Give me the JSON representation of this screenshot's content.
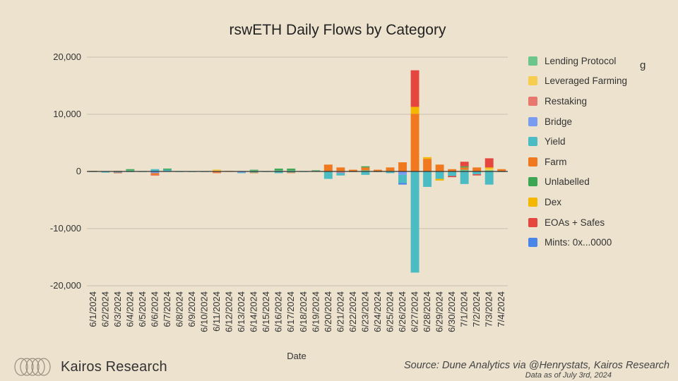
{
  "chart_data": {
    "type": "bar",
    "stacked": true,
    "title": "rswETH Daily Flows by Category",
    "xlabel": "Date",
    "ylabel": "",
    "ylim": [
      -20000,
      20000
    ],
    "yticks": [
      20000,
      10000,
      0,
      -10000,
      -20000
    ],
    "ytick_labels": [
      "20,000",
      "10,000",
      "0",
      "-10,000",
      "-20,000"
    ],
    "grid": true,
    "legend_position": "right",
    "categories": [
      "6/1/2024",
      "6/2/2024",
      "6/3/2024",
      "6/4/2024",
      "6/5/2024",
      "6/6/2024",
      "6/7/2024",
      "6/8/2024",
      "6/9/2024",
      "6/10/2024",
      "6/11/2024",
      "6/12/2024",
      "6/13/2024",
      "6/14/2024",
      "6/15/2024",
      "6/16/2024",
      "6/17/2024",
      "6/18/2024",
      "6/19/2024",
      "6/20/2024",
      "6/21/2024",
      "6/22/2024",
      "6/23/2024",
      "6/24/2024",
      "6/25/2024",
      "6/26/2024",
      "6/27/2024",
      "6/28/2024",
      "6/29/2024",
      "6/30/2024",
      "7/1/2024",
      "7/2/2024",
      "7/3/2024",
      "7/4/2024"
    ],
    "series": [
      {
        "name": "Lending Protocol",
        "color": "#6cc58a",
        "values": [
          0,
          0,
          0,
          200,
          0,
          0,
          0,
          0,
          0,
          0,
          0,
          0,
          0,
          200,
          0,
          200,
          200,
          0,
          0,
          0,
          0,
          0,
          200,
          0,
          100,
          0,
          0,
          0,
          0,
          0,
          300,
          0,
          200,
          0
        ]
      },
      {
        "name": "Leveraged Farming",
        "color": "#f7cd4f",
        "values": [
          0,
          0,
          0,
          0,
          0,
          0,
          0,
          0,
          0,
          0,
          200,
          0,
          0,
          0,
          0,
          0,
          0,
          0,
          0,
          0,
          100,
          0,
          0,
          0,
          0,
          0,
          0,
          0,
          0,
          0,
          0,
          0,
          300,
          0
        ]
      },
      {
        "name": "Restaking",
        "color": "#e8786d",
        "values": [
          0,
          0,
          0,
          0,
          0,
          0,
          0,
          0,
          0,
          0,
          -200,
          0,
          0,
          0,
          0,
          0,
          0,
          0,
          0,
          0,
          -200,
          0,
          0,
          0,
          0,
          0,
          0,
          0,
          0,
          0,
          0,
          0,
          0,
          0
        ]
      },
      {
        "name": "Bridge",
        "color": "#7a9cf0",
        "values": [
          0,
          0,
          0,
          0,
          0,
          -300,
          0,
          0,
          0,
          0,
          0,
          0,
          -200,
          0,
          0,
          0,
          0,
          0,
          0,
          0,
          -100,
          0,
          0,
          0,
          0,
          -600,
          0,
          0,
          0,
          0,
          0,
          0,
          0,
          0
        ]
      },
      {
        "name": "Yield",
        "color": "#4bbcc4",
        "values": [
          -100,
          -200,
          -200,
          -100,
          -100,
          400,
          300,
          -100,
          -100,
          -100,
          0,
          0,
          -100,
          -200,
          -100,
          -300,
          -200,
          -100,
          100,
          -1300,
          -400,
          -100,
          -600,
          -100,
          -300,
          -1400,
          -17700,
          -2700,
          -1300,
          -800,
          -2200,
          -500,
          -2300,
          -100
        ]
      },
      {
        "name": "Farm",
        "color": "#f0781e",
        "values": [
          100,
          0,
          100,
          0,
          0,
          -300,
          0,
          0,
          0,
          0,
          -100,
          100,
          0,
          -100,
          0,
          0,
          -100,
          0,
          0,
          1200,
          600,
          300,
          500,
          300,
          600,
          1600,
          10100,
          2200,
          1200,
          400,
          400,
          700,
          0,
          400
        ]
      },
      {
        "name": "Unlabelled",
        "color": "#3da654",
        "values": [
          0,
          0,
          0,
          200,
          0,
          0,
          200,
          0,
          0,
          0,
          0,
          0,
          0,
          100,
          0,
          300,
          300,
          0,
          100,
          0,
          0,
          0,
          200,
          0,
          0,
          0,
          0,
          0,
          0,
          0,
          200,
          0,
          0,
          0
        ]
      },
      {
        "name": "Dex",
        "color": "#f5b800",
        "values": [
          0,
          0,
          0,
          0,
          0,
          0,
          0,
          0,
          0,
          0,
          100,
          0,
          0,
          0,
          0,
          0,
          0,
          0,
          0,
          0,
          0,
          0,
          0,
          0,
          0,
          0,
          1200,
          300,
          -300,
          0,
          0,
          0,
          200,
          0
        ]
      },
      {
        "name": "EOAs + Safes",
        "color": "#e5463e",
        "values": [
          0,
          0,
          -100,
          0,
          0,
          -100,
          0,
          0,
          0,
          0,
          0,
          0,
          0,
          0,
          0,
          0,
          0,
          0,
          0,
          0,
          0,
          0,
          0,
          0,
          0,
          0,
          6400,
          0,
          0,
          -200,
          800,
          -200,
          1600,
          0
        ]
      },
      {
        "name": "Mints: 0x...0000",
        "color": "#4a86e8",
        "values": [
          0,
          0,
          0,
          0,
          0,
          0,
          0,
          0,
          0,
          0,
          0,
          0,
          0,
          0,
          0,
          0,
          0,
          0,
          0,
          0,
          0,
          0,
          0,
          0,
          0,
          -300,
          0,
          0,
          0,
          0,
          0,
          0,
          0,
          0
        ]
      }
    ]
  },
  "branding": {
    "name": "Kairos Research"
  },
  "source": {
    "text": "Source: Dune Analytics via @Henrystats, Kairos Research",
    "asof": "Data as of July 3rd, 2024"
  },
  "legend_clip_glyph": "g"
}
